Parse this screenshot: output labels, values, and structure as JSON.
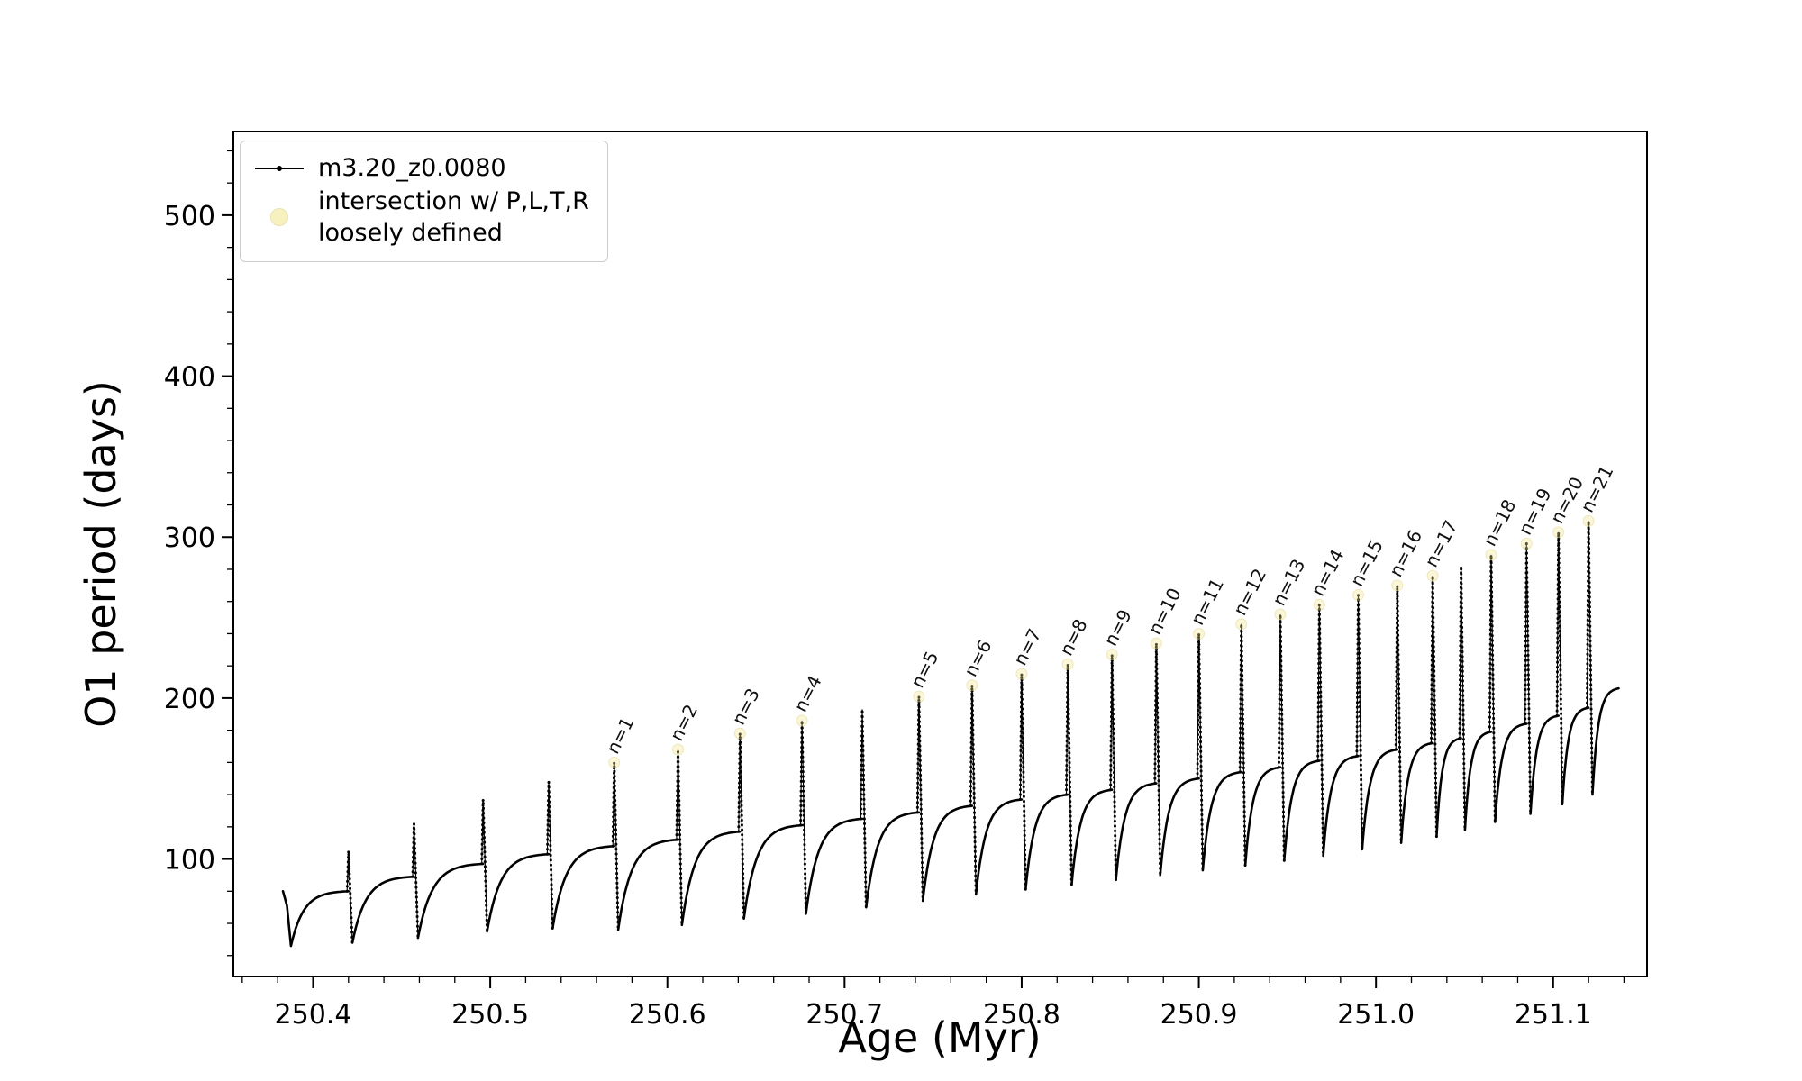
{
  "figure": {
    "background": "#ffffff"
  },
  "axes": {
    "xlabel": "Age (Myr)",
    "ylabel": "O1 period (days)",
    "xlim": [
      250.355,
      251.153
    ],
    "ylim": [
      27,
      552
    ],
    "xticks": [
      250.4,
      250.5,
      250.6,
      250.7,
      250.8,
      250.9,
      251.0,
      251.1
    ],
    "xtick_labels": [
      "250.4",
      "250.5",
      "250.6",
      "250.7",
      "250.8",
      "250.9",
      "251.0",
      "251.1"
    ],
    "yticks": [
      100,
      200,
      300,
      400,
      500
    ],
    "ytick_labels": [
      "100",
      "200",
      "300",
      "400",
      "500"
    ],
    "x_minor_step": 0.02,
    "y_minor_step": 20,
    "line_color": "#000000",
    "frame_color": "#000000"
  },
  "legend": {
    "series_label": "m3.20_z0.0080",
    "intersection_label_line1": "intersection w/ P,L,T,R",
    "intersection_label_line2": "loosely defined",
    "series_color": "#000000",
    "intersection_marker_color": "#f0e68c"
  },
  "chart_data": {
    "type": "line",
    "title": "",
    "xlabel": "Age (Myr)",
    "ylabel": "O1 period (days)",
    "xlim": [
      250.355,
      251.153
    ],
    "ylim": [
      27,
      552
    ],
    "series_name": "m3.20_z0.0080",
    "line_color": "#000000",
    "intersection_marker_color": "#f0e68c",
    "spike_width_myr": 0.0022,
    "start": {
      "age": 250.383,
      "period": 80,
      "drop_to": 46,
      "drop_end_age": 250.3875
    },
    "cycles": [
      {
        "t": 250.42,
        "peak": 105,
        "pre": 80,
        "post": 48,
        "label": ""
      },
      {
        "t": 250.457,
        "peak": 122,
        "pre": 89,
        "post": 51,
        "label": ""
      },
      {
        "t": 250.496,
        "peak": 137,
        "pre": 97,
        "post": 55,
        "label": ""
      },
      {
        "t": 250.533,
        "peak": 148,
        "pre": 103,
        "post": 57,
        "label": ""
      },
      {
        "t": 250.57,
        "peak": 160,
        "pre": 108,
        "post": 56,
        "label": "n=1"
      },
      {
        "t": 250.606,
        "peak": 168,
        "pre": 112,
        "post": 59,
        "label": "n=2"
      },
      {
        "t": 250.641,
        "peak": 178,
        "pre": 117,
        "post": 63,
        "label": "n=3"
      },
      {
        "t": 250.676,
        "peak": 186,
        "pre": 121,
        "post": 66,
        "label": "n=4"
      },
      {
        "t": 250.71,
        "peak": 193,
        "pre": 125,
        "post": 70,
        "label": ""
      },
      {
        "t": 250.742,
        "peak": 201,
        "pre": 129,
        "post": 74,
        "label": "n=5"
      },
      {
        "t": 250.772,
        "peak": 208,
        "pre": 133,
        "post": 78,
        "label": "n=6"
      },
      {
        "t": 250.8,
        "peak": 215,
        "pre": 137,
        "post": 81,
        "label": "n=7"
      },
      {
        "t": 250.826,
        "peak": 221,
        "pre": 140,
        "post": 84,
        "label": "n=8"
      },
      {
        "t": 250.851,
        "peak": 227,
        "pre": 143,
        "post": 87,
        "label": "n=9"
      },
      {
        "t": 250.876,
        "peak": 234,
        "pre": 147,
        "post": 90,
        "label": "n=10"
      },
      {
        "t": 250.9,
        "peak": 240,
        "pre": 150,
        "post": 93,
        "label": "n=11"
      },
      {
        "t": 250.924,
        "peak": 246,
        "pre": 154,
        "post": 96,
        "label": "n=12"
      },
      {
        "t": 250.946,
        "peak": 252,
        "pre": 157,
        "post": 99,
        "label": "n=13"
      },
      {
        "t": 250.968,
        "peak": 258,
        "pre": 161,
        "post": 102,
        "label": "n=14"
      },
      {
        "t": 250.99,
        "peak": 264,
        "pre": 164,
        "post": 106,
        "label": "n=15"
      },
      {
        "t": 251.012,
        "peak": 270,
        "pre": 168,
        "post": 110,
        "label": "n=16"
      },
      {
        "t": 251.032,
        "peak": 276,
        "pre": 172,
        "post": 114,
        "label": "n=17"
      },
      {
        "t": 251.048,
        "peak": 282,
        "pre": 175,
        "post": 118,
        "label": ""
      },
      {
        "t": 251.065,
        "peak": 289,
        "pre": 179,
        "post": 123,
        "label": "n=18"
      },
      {
        "t": 251.085,
        "peak": 296,
        "pre": 184,
        "post": 128,
        "label": "n=19"
      },
      {
        "t": 251.103,
        "peak": 303,
        "pre": 189,
        "post": 134,
        "label": "n=20"
      },
      {
        "t": 251.12,
        "peak": 310,
        "pre": 194,
        "post": 140,
        "label": "n=21"
      }
    ],
    "tail": {
      "end_age": 251.137,
      "end_period": 206
    }
  }
}
